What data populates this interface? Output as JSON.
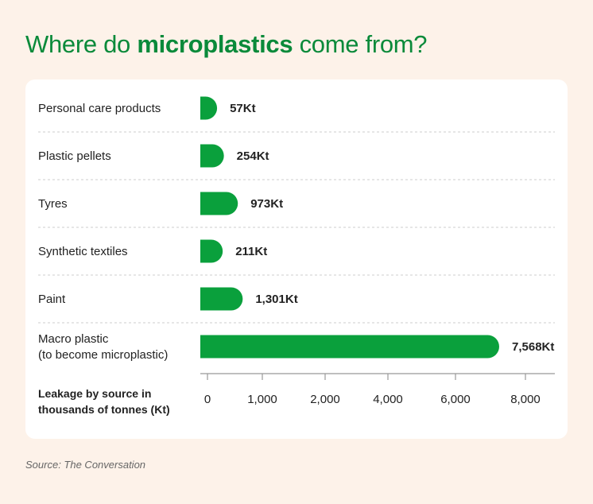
{
  "title": {
    "prefix": "Where do ",
    "emphasis": "microplastics",
    "suffix": " come from?"
  },
  "source": "Source: The Conversation",
  "colors": {
    "bar": "#0aa03c",
    "title": "#0a8a3a",
    "background": "#fdf2e9",
    "card": "#ffffff"
  },
  "chart_data": {
    "type": "bar",
    "orientation": "horizontal",
    "categories": [
      [
        "Personal care products"
      ],
      [
        "Plastic pellets"
      ],
      [
        "Tyres"
      ],
      [
        "Synthetic textiles"
      ],
      [
        "Paint"
      ],
      [
        "Macro plastic",
        "(to become microplastic)"
      ]
    ],
    "values": [
      57,
      254,
      973,
      211,
      1301,
      7568
    ],
    "value_labels": [
      "57Kt",
      "254Kt",
      "973Kt",
      "211Kt",
      "1,301Kt",
      "7,568Kt"
    ],
    "axis_label": [
      "Leakage by source in",
      "thousands of tonnes (Kt)"
    ],
    "ticks": [
      0,
      1000,
      2000,
      4000,
      6000,
      8000
    ],
    "tick_labels": [
      "0",
      "1,000",
      "2,000",
      "4,000",
      "6,000",
      "8,000"
    ],
    "grid": false,
    "legend": "none"
  }
}
